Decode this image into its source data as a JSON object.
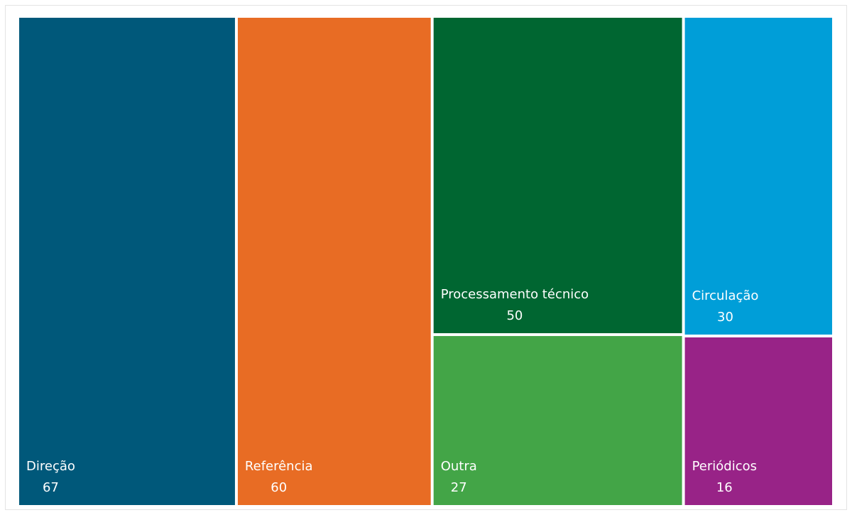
{
  "chart_data": {
    "type": "treemap",
    "categories": [
      "Direção",
      "Referência",
      "Processamento técnico",
      "Outra",
      "Circulação",
      "Periódicos"
    ],
    "values": [
      67,
      60,
      50,
      27,
      30,
      16
    ],
    "colors": [
      "#00587a",
      "#e86c24",
      "#006631",
      "#43a547",
      "#009ed8",
      "#982387"
    ]
  }
}
